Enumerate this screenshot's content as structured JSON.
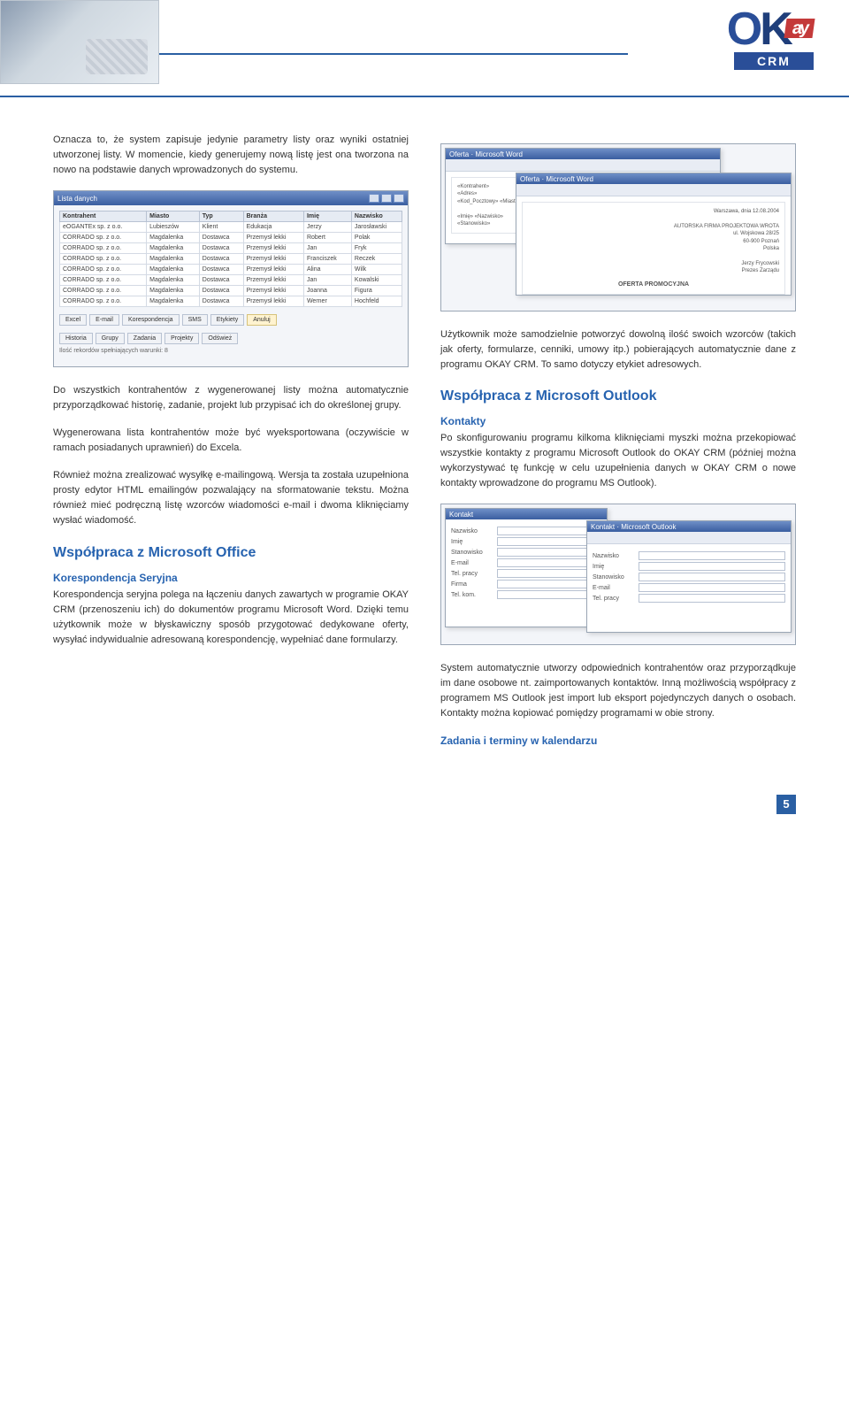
{
  "page_number": "5",
  "brand": {
    "ok": "OK",
    "ay": "ay",
    "crm": "CRM"
  },
  "col_left": {
    "para1": "Oznacza to, że system zapisuje jedynie parametry listy oraz wyniki ostatniej utworzonej listy. W momencie, kiedy generujemy nową listę jest ona tworzona na nowo na podstawie danych wprowadzonych do systemu.",
    "screenshot1": {
      "title": "Lista danych",
      "columns": [
        "Kontrahent",
        "Miasto",
        "Typ",
        "Branża",
        "Imię",
        "Nazwisko"
      ],
      "rows": [
        [
          "eOGANTEx sp. z o.o.",
          "Lubieszów",
          "Klient",
          "Edukacja",
          "Jerzy",
          "Jarosławski"
        ],
        [
          "CORRADO sp. z o.o.",
          "Magdalenka",
          "Dostawca",
          "Przemysł lekki",
          "Robert",
          "Polak"
        ],
        [
          "CORRADO sp. z o.o.",
          "Magdalenka",
          "Dostawca",
          "Przemysł lekki",
          "Jan",
          "Fryk"
        ],
        [
          "CORRADO sp. z o.o.",
          "Magdalenka",
          "Dostawca",
          "Przemysł lekki",
          "Franciszek",
          "Reczek"
        ],
        [
          "CORRADO sp. z o.o.",
          "Magdalenka",
          "Dostawca",
          "Przemysł lekki",
          "Alina",
          "Wilk"
        ],
        [
          "CORRADO sp. z o.o.",
          "Magdalenka",
          "Dostawca",
          "Przemysł lekki",
          "Jan",
          "Kowalski"
        ],
        [
          "CORRADO sp. z o.o.",
          "Magdalenka",
          "Dostawca",
          "Przemysł lekki",
          "Joanna",
          "Figura"
        ],
        [
          "CORRADO sp. z o.o.",
          "Magdalenka",
          "Dostawca",
          "Przemysł lekki",
          "Werner",
          "Hochfeld"
        ]
      ],
      "buttons_row1": [
        "Excel",
        "E-mail",
        "Korespondencja",
        "SMS",
        "Etykiety",
        "Anuluj"
      ],
      "buttons_row2": [
        "Historia",
        "Grupy",
        "Zadania",
        "Projekty",
        "Odśwież"
      ],
      "status": "Ilość rekordów spełniających warunki: 8"
    },
    "para2": "Do wszystkich kontrahentów z wygenerowanej listy można automatycznie przyporządkować historię, zadanie, projekt lub przypisać ich do określonej grupy.",
    "para3": "Wygenerowana lista kontrahentów może być wyeksportowana (oczywiście w ramach posiadanych uprawnień) do Excela.",
    "para4": "Również można zrealizować wysyłkę e-mailingową. Wersja ta została uzupełniona prosty edytor HTML emailingów pozwalający na sformatowanie tekstu. Można również mieć podręczną listę wzorców wiadomości e-mail i dwoma kliknięciamy wysłać wiadomość.",
    "h2_office": "Współpraca z Microsoft Office",
    "h3_koresp": "Korespondencja Seryjna",
    "para5": "Korespondencja seryjna polega na łączeniu danych zawartych w programie OKAY CRM (przenoszeniu ich) do dokumentów programu Microsoft Word. Dzięki temu użytkownik może w błyskawiczny sposób przygotować dedykowane oferty, wysyłać indywidualnie adresowaną korespondencję, wypełniać dane formularzy."
  },
  "col_right": {
    "screenshot2": {
      "win1_title": "Oferta · Microsoft Word",
      "win2_title": "Oferta · Microsoft Word",
      "doc1_lines": [
        "«Kontrahent»",
        "«Adres»",
        "«Kod_Pocztowy» «Miasto»",
        "",
        "«Imię» «Nazwisko»",
        "«Stanowisko»"
      ],
      "doc2_heading": "OFERTA PROMOCYJNA",
      "doc2_lines": [
        "Warszawa, dnia 12.08.2004",
        "",
        "AUTORSKA FIRMA PROJEKTOWA WROTA",
        "ul. Wojskowa 28/25",
        "60-900 Poznań",
        "Polska",
        "",
        "Jerzy Frycowski",
        "Prezes Zarządu"
      ]
    },
    "para1": "Użytkownik może samodzielnie potworzyć dowolną ilość swoich wzorców (takich jak oferty, formularze, cenniki, umowy itp.) pobierających automatycznie dane z programu OKAY CRM. To samo dotyczy etykiet adresowych.",
    "h2_outlook": "Współpraca z Microsoft Outlook",
    "h3_kontakty": "Kontakty",
    "para2": "Po skonfigurowaniu programu kilkoma kliknięciami myszki można przekopiować wszystkie kontakty z programu Microsoft Outlook do OKAY CRM (później można wykorzystywać tę funkcję w celu uzupełnienia danych w OKAY CRM o nowe kontakty wprowadzone do programu MS Outlook).",
    "screenshot3": {
      "title1": "Kontakt",
      "title2": "Kontakt · Microsoft Outlook",
      "labels": [
        "Nazwisko",
        "Imię",
        "Stanowisko",
        "E-mail",
        "Tel. pracy",
        "Firma",
        "Tel. kom."
      ]
    },
    "para3": "System automatycznie utworzy odpowiednich kontrahentów oraz przyporządkuje im dane osobowe nt. zaimportowanych kontaktów. Inną możliwością współpracy z programem MS Outlook jest import lub eksport pojedynczych danych o osobach. Kontakty można kopiować pomiędzy programami w obie strony.",
    "h3_zadania": "Zadania i terminy w kalendarzu"
  }
}
